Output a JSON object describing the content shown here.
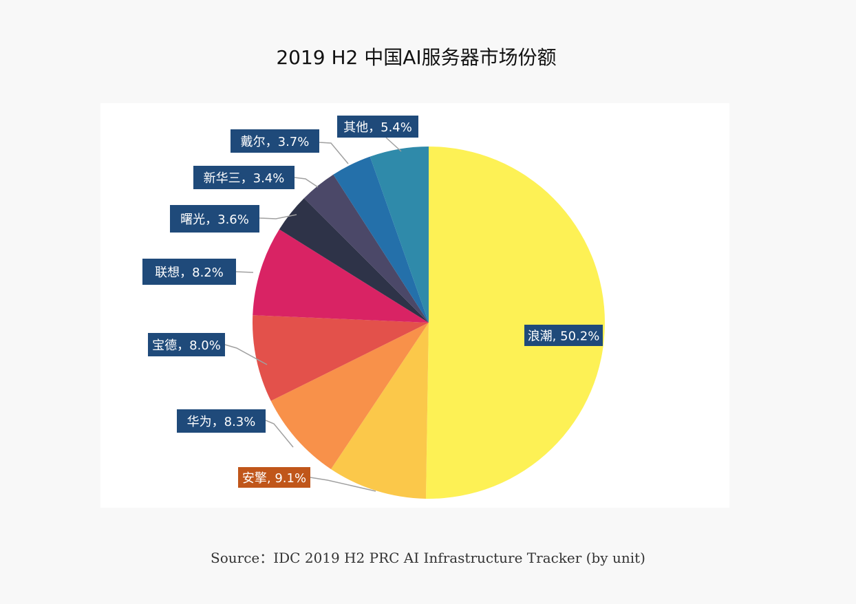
{
  "chart_data": {
    "type": "pie",
    "title": "2019 H2 中国AI服务器市场份额",
    "source": "Source：IDC 2019 H2 PRC AI Infrastructure Tracker (by unit)",
    "slices": [
      {
        "label": "浪潮, 50.2%",
        "value": 50.2,
        "color": "#fdf155",
        "label_bg": "#1f4a7a"
      },
      {
        "label": "安擎, 9.1%",
        "value": 9.1,
        "color": "#fbc84a",
        "label_bg": "#c0561a"
      },
      {
        "label": "华为，8.3%",
        "value": 8.3,
        "color": "#f8914a",
        "label_bg": "#1f4a7a"
      },
      {
        "label": "宝德，8.0%",
        "value": 8.0,
        "color": "#e3514b",
        "label_bg": "#1f4a7a"
      },
      {
        "label": "联想，8.2%",
        "value": 8.2,
        "color": "#d92364",
        "label_bg": "#1f4a7a"
      },
      {
        "label": "曙光，3.6%",
        "value": 3.6,
        "color": "#2e3348",
        "label_bg": "#1f4a7a"
      },
      {
        "label": "新华三，3.4%",
        "value": 3.4,
        "color": "#4b4868",
        "label_bg": "#1f4a7a"
      },
      {
        "label": "戴尔，3.7%",
        "value": 3.7,
        "color": "#2470aa",
        "label_bg": "#1f4a7a"
      },
      {
        "label": "其他，5.4%",
        "value": 5.4,
        "color": "#2f8aaa",
        "label_bg": "#1f4a7a"
      }
    ]
  }
}
